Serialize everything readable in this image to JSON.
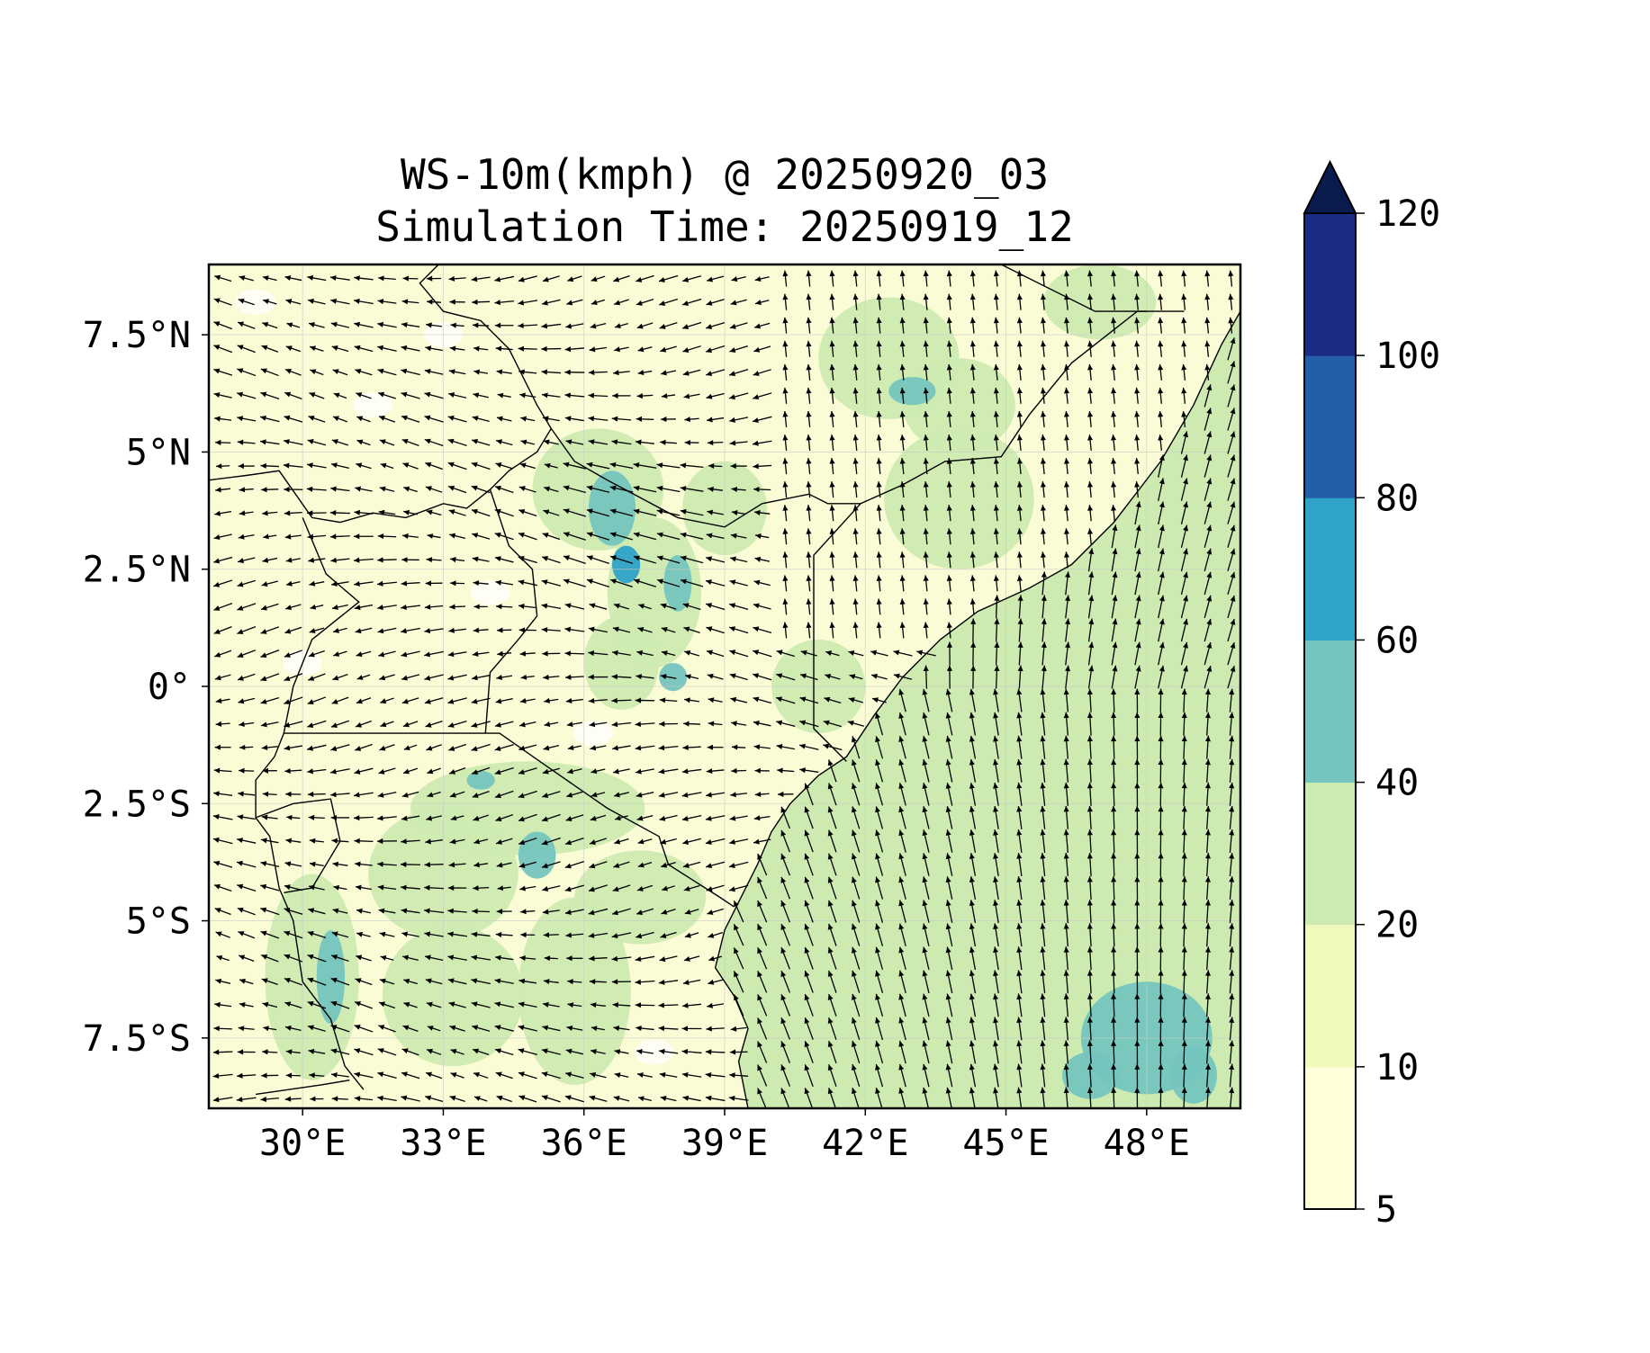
{
  "title": {
    "line1": "WS-10m(kmph) @ 20250920_03",
    "line2": "Simulation Time: 20250919_12"
  },
  "map": {
    "lon_range": [
      28,
      50
    ],
    "lat_range": [
      -9,
      9
    ],
    "lon_ticks": [
      {
        "value": 30,
        "label": "30°E"
      },
      {
        "value": 33,
        "label": "33°E"
      },
      {
        "value": 36,
        "label": "36°E"
      },
      {
        "value": 39,
        "label": "39°E"
      },
      {
        "value": 42,
        "label": "42°E"
      },
      {
        "value": 45,
        "label": "45°E"
      },
      {
        "value": 48,
        "label": "48°E"
      }
    ],
    "lat_ticks": [
      {
        "value": 7.5,
        "label": "7.5°N"
      },
      {
        "value": 5,
        "label": "5°N"
      },
      {
        "value": 2.5,
        "label": "2.5°N"
      },
      {
        "value": 0,
        "label": "0°"
      },
      {
        "value": -2.5,
        "label": "2.5°S"
      },
      {
        "value": -5,
        "label": "5°S"
      },
      {
        "value": -7.5,
        "label": "7.5°S"
      }
    ],
    "gridlines": true
  },
  "colorbar": {
    "levels": [
      5,
      10,
      20,
      40,
      60,
      80,
      100,
      120
    ],
    "labels": [
      "5",
      "10",
      "20",
      "40",
      "60",
      "80",
      "100",
      "120"
    ],
    "colors": [
      "#ffffd9",
      "#f0f9bb",
      "#cdebb1",
      "#75c5bf",
      "#2fa3c8",
      "#225fa8",
      "#1d2c83"
    ],
    "extend_color": "#0a1c4e",
    "extend": "max"
  }
}
